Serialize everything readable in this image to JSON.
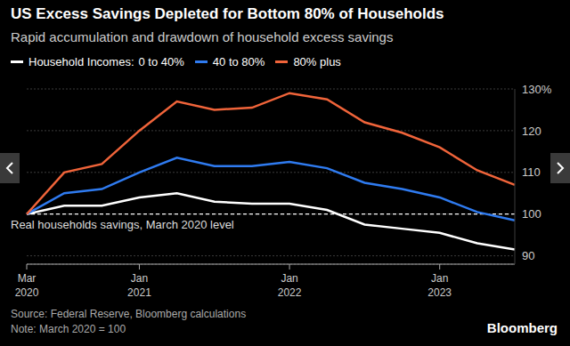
{
  "chart_data": {
    "type": "line",
    "title": "US Excess Savings Depleted for Bottom 80% of Households",
    "subtitle": "Rapid accumulation and drawdown of household excess savings",
    "legend_title": "Household Incomes:",
    "legend": "top-left",
    "grid": true,
    "categories": [
      "Mar 2020",
      null,
      null,
      "Jan 2021",
      null,
      null,
      null,
      "Jan 2022",
      null,
      null,
      null,
      "Jan 2023",
      null,
      null
    ],
    "series": [
      {
        "name": "0 to 40%",
        "color": "#ffffff",
        "values": [
          100,
          102,
          102,
          104,
          105,
          103,
          102.5,
          102.5,
          101,
          97.5,
          96.5,
          95.5,
          93,
          91.5
        ]
      },
      {
        "name": "40 to 80%",
        "color": "#2f7bf0",
        "values": [
          100,
          105,
          106,
          110,
          113.5,
          111.5,
          111.5,
          112.5,
          111,
          107.5,
          106,
          104,
          100.5,
          98.5
        ]
      },
      {
        "name": "80% plus",
        "color": "#f0643a",
        "values": [
          100,
          110,
          112,
          120,
          127,
          125,
          125.5,
          129,
          127.5,
          122,
          119.5,
          116,
          110.5,
          107
        ]
      }
    ],
    "ylim": [
      88,
      130
    ],
    "yticks": [
      90,
      100,
      110,
      120,
      {
        "value": 130,
        "label": "130%"
      }
    ],
    "annotations": [
      {
        "text": "Real households savings, March 2020 level",
        "y": 100
      }
    ],
    "source": "Source: Federal Reserve, Bloomberg calculations",
    "note": "Note: March 2020 = 100",
    "brand": "Bloomberg"
  }
}
